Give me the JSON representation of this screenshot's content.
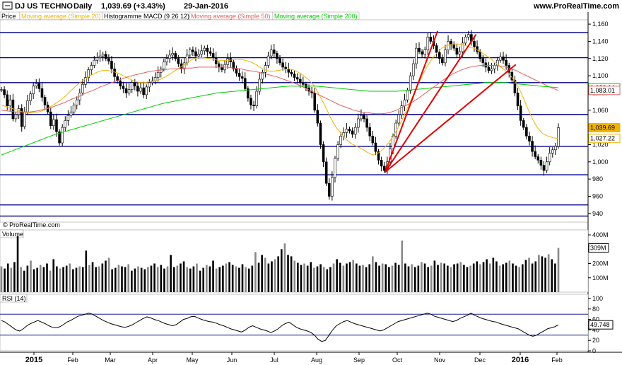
{
  "header": {
    "title": "DJ US TECHNO",
    "period": "Daily",
    "quote": "1,039.69 (+3.43%)",
    "date": "29-Jan-2016",
    "site": "www.ProRealTime.com"
  },
  "watermark": "© ProRealTime.com",
  "legend": [
    {
      "label": "Price",
      "color": "#000000"
    },
    {
      "label": "Moving average (Simple 20)",
      "color": "#f0b400"
    },
    {
      "label": "Histogramme MACD (9 26 12)",
      "color": "#000000"
    },
    {
      "label": "Moving average (Simple 50)",
      "color": "#e06060"
    },
    {
      "label": "Moving average (Simple 200)",
      "color": "#00cc00"
    }
  ],
  "x_labels": [
    {
      "label": "2015",
      "bold": true
    },
    {
      "label": "Feb",
      "bold": false
    },
    {
      "label": "Mar",
      "bold": false
    },
    {
      "label": "Apr",
      "bold": false
    },
    {
      "label": "May",
      "bold": false
    },
    {
      "label": "Jun",
      "bold": false
    },
    {
      "label": "Jul",
      "bold": false
    },
    {
      "label": "Aug",
      "bold": false
    },
    {
      "label": "Sep",
      "bold": false
    },
    {
      "label": "Oct",
      "bold": false
    },
    {
      "label": "Nov",
      "bold": false
    },
    {
      "label": "Dec",
      "bold": false
    },
    {
      "label": "2016",
      "bold": true
    },
    {
      "label": "Feb",
      "bold": false
    }
  ],
  "chart_data": [
    {
      "type": "line",
      "panel": "price",
      "yticks": [
        "1,160",
        "1,140",
        "1,120",
        "1,100",
        "1,080",
        "1,060",
        "1,040",
        "1,020",
        "1,000",
        "980",
        "960",
        "940"
      ],
      "ylim": [
        930,
        1165
      ],
      "support_resistance_levels": [
        1150,
        1121,
        1092,
        1055,
        1018,
        985,
        950,
        937
      ],
      "trendlines": [
        {
          "from": [
            "2015-09-29",
            988
          ],
          "to": [
            "2015-11-05",
            1152
          ]
        },
        {
          "from": [
            "2015-09-29",
            988
          ],
          "to": [
            "2015-12-02",
            1148
          ]
        },
        {
          "from": [
            "2015-09-29",
            988
          ],
          "to": [
            "2015-12-30",
            1113
          ]
        }
      ],
      "last_values": [
        {
          "label": "1,086.14",
          "series": "Moving average (Simple 200)",
          "value": 1086.14,
          "color": "#00cc00"
        },
        {
          "label": "1,083.01",
          "series": "Moving average (Simple 50)",
          "value": 1083.01,
          "color": "#e06060"
        },
        {
          "label": "1,039.69",
          "series": "Price",
          "value": 1039.69,
          "color": "#f0b400"
        },
        {
          "label": "1,027.22",
          "series": "Moving average (Simple 20)",
          "value": 1027.22,
          "color": "#f0b400"
        }
      ],
      "series": [
        {
          "name": "Price",
          "values": [
            1084,
            1078,
            1065,
            1072,
            1050,
            1055,
            1062,
            1041,
            1058,
            1071,
            1079,
            1088,
            1091,
            1085,
            1075,
            1066,
            1058,
            1042,
            1049,
            1035,
            1022,
            1040,
            1048,
            1054,
            1058,
            1066,
            1072,
            1080,
            1090,
            1098,
            1107,
            1112,
            1118,
            1121,
            1123,
            1125,
            1120,
            1117,
            1108,
            1099,
            1094,
            1088,
            1085,
            1080,
            1084,
            1092,
            1088,
            1082,
            1086,
            1078,
            1087,
            1092,
            1094,
            1098,
            1104,
            1108,
            1116,
            1120,
            1124,
            1126,
            1120,
            1114,
            1108,
            1115,
            1124,
            1130,
            1128,
            1123,
            1125,
            1129,
            1132,
            1128,
            1126,
            1121,
            1114,
            1110,
            1107,
            1113,
            1120,
            1116,
            1108,
            1103,
            1099,
            1097,
            1085,
            1074,
            1066,
            1065,
            1082,
            1096,
            1104,
            1112,
            1123,
            1130,
            1126,
            1120,
            1115,
            1110,
            1108,
            1104,
            1102,
            1098,
            1096,
            1092,
            1090,
            1086,
            1082,
            1080,
            1060,
            1045,
            1020,
            1000,
            975,
            960,
            982,
            1004,
            1020,
            1030,
            1034,
            1038,
            1036,
            1032,
            1040,
            1050,
            1054,
            1050,
            1040,
            1030,
            1022,
            1012,
            1002,
            995,
            990,
            1000,
            1015,
            1030,
            1045,
            1055,
            1065,
            1072,
            1083,
            1100,
            1114,
            1132,
            1128,
            1125,
            1130,
            1145,
            1140,
            1135,
            1127,
            1120,
            1115,
            1130,
            1140,
            1136,
            1132,
            1125,
            1128,
            1138,
            1145,
            1148,
            1140,
            1134,
            1128,
            1120,
            1115,
            1110,
            1106,
            1108,
            1112,
            1118,
            1122,
            1118,
            1112,
            1104,
            1095,
            1080,
            1065,
            1048,
            1040,
            1030,
            1024,
            1012,
            1006,
            1002,
            996,
            990,
            1000,
            1010,
            1014,
            1018,
            1039.69
          ]
        },
        {
          "name": "Moving average (Simple 20)",
          "values": [
            1066,
            1064,
            1062,
            1060,
            1058,
            1057,
            1057,
            1058,
            1060,
            1063,
            1067,
            1071,
            1076,
            1082,
            1088,
            1093,
            1097,
            1101,
            1104,
            1106,
            1106,
            1105,
            1103,
            1100,
            1097,
            1094,
            1092,
            1092,
            1093,
            1094,
            1096,
            1099,
            1103,
            1107,
            1111,
            1115,
            1119,
            1121,
            1121,
            1120,
            1119,
            1118,
            1118,
            1118,
            1119,
            1119,
            1118,
            1116,
            1113,
            1109,
            1106,
            1105,
            1106,
            1107,
            1108,
            1107,
            1104,
            1100,
            1095,
            1088,
            1077,
            1065,
            1052,
            1041,
            1033,
            1026,
            1021,
            1018,
            1015,
            1011,
            1008,
            1010,
            1015,
            1022,
            1031,
            1042,
            1055,
            1069,
            1083,
            1096,
            1108,
            1118,
            1126,
            1132,
            1135,
            1137,
            1137,
            1136,
            1134,
            1132,
            1129,
            1125,
            1121,
            1116,
            1111,
            1106,
            1100,
            1092,
            1080,
            1065,
            1051,
            1040,
            1033,
            1030,
            1028,
            1027.22
          ]
        },
        {
          "name": "Moving average (Simple 50)",
          "values": [
            1060,
            1059,
            1058,
            1058,
            1058,
            1059,
            1061,
            1063,
            1066,
            1069,
            1073,
            1076,
            1080,
            1083,
            1087,
            1090,
            1093,
            1096,
            1099,
            1101,
            1103,
            1105,
            1106,
            1107,
            1108,
            1108,
            1109,
            1109,
            1110,
            1110,
            1110,
            1110,
            1110,
            1109,
            1108,
            1106,
            1105,
            1103,
            1101,
            1099,
            1096,
            1093,
            1090,
            1086,
            1082,
            1078,
            1074,
            1070,
            1066,
            1063,
            1060,
            1058,
            1057,
            1056,
            1056,
            1057,
            1060,
            1064,
            1068,
            1073,
            1079,
            1085,
            1091,
            1097,
            1102,
            1106,
            1109,
            1111,
            1112,
            1112,
            1112,
            1111,
            1109,
            1106,
            1102,
            1098,
            1094,
            1090,
            1086,
            1083.01
          ]
        },
        {
          "name": "Moving average (Simple 200)",
          "values": [
            1008,
            1012,
            1016,
            1020,
            1024,
            1028,
            1032,
            1035,
            1038,
            1041,
            1044,
            1047,
            1050,
            1053,
            1056,
            1059,
            1062,
            1065,
            1068,
            1070,
            1072,
            1074,
            1076,
            1078,
            1080,
            1081,
            1082,
            1083,
            1084,
            1085,
            1086,
            1087,
            1088,
            1088,
            1088,
            1088,
            1087,
            1086,
            1085,
            1084,
            1083,
            1082,
            1082,
            1082,
            1082,
            1083,
            1084,
            1085,
            1086,
            1087,
            1088,
            1089,
            1090,
            1091,
            1092,
            1092,
            1092,
            1091,
            1090,
            1089,
            1088,
            1087,
            1086.14
          ]
        }
      ]
    },
    {
      "type": "bar",
      "panel": "volume",
      "title": "Volume",
      "yticks": [
        "400M",
        "300M",
        "200M",
        "100M"
      ],
      "ylim": [
        0,
        420
      ],
      "last_value": {
        "label": "309M",
        "value": 309
      },
      "values": [
        180,
        165,
        200,
        170,
        210,
        390,
        175,
        150,
        185,
        220,
        160,
        170,
        190,
        175,
        200,
        150,
        230,
        180,
        165,
        175,
        185,
        200,
        160,
        170,
        180,
        175,
        290,
        190,
        210,
        175,
        180,
        200,
        220,
        240,
        160,
        170,
        190,
        180,
        175,
        195,
        150,
        165,
        180,
        170,
        160,
        175,
        185,
        200,
        175,
        190,
        165,
        180,
        260,
        175,
        185,
        200,
        215,
        175,
        165,
        180,
        200,
        150,
        170,
        190,
        180,
        220,
        165,
        175,
        185,
        200,
        210,
        190,
        180,
        170,
        195,
        175,
        165,
        185,
        280,
        205,
        260,
        240,
        200,
        215,
        230,
        250,
        300,
        340,
        260,
        250,
        220,
        205,
        190,
        200,
        185,
        210,
        170,
        180,
        195,
        175,
        160,
        175,
        200,
        230,
        205,
        185,
        200,
        210,
        225,
        200,
        185,
        190,
        175,
        195,
        250,
        210,
        185,
        200,
        195,
        175,
        185,
        205,
        190,
        360,
        200,
        180,
        195,
        175,
        185,
        210,
        200,
        175,
        185,
        220,
        190,
        205,
        200,
        185,
        175,
        195,
        200,
        210,
        190,
        175,
        185,
        200,
        215,
        195,
        210,
        230,
        200,
        240,
        215,
        185,
        195,
        205,
        220,
        200,
        185,
        175,
        195,
        225,
        240,
        200,
        215,
        260,
        250,
        240,
        265,
        230,
        200,
        309
      ]
    },
    {
      "type": "line",
      "panel": "rsi",
      "title": "RSI (14)",
      "yticks": [
        "100",
        "80",
        "60",
        "40",
        "20",
        "0"
      ],
      "ylim": [
        0,
        100
      ],
      "levels": [
        70,
        30
      ],
      "last_value": {
        "label": "49.748",
        "value": 49.748
      },
      "values": [
        58,
        55,
        50,
        45,
        40,
        38,
        42,
        48,
        52,
        55,
        58,
        55,
        52,
        48,
        45,
        44,
        46,
        50,
        55,
        58,
        62,
        66,
        68,
        70,
        72,
        70,
        66,
        62,
        58,
        55,
        52,
        50,
        48,
        46,
        45,
        47,
        50,
        54,
        58,
        62,
        65,
        63,
        60,
        58,
        55,
        52,
        50,
        48,
        50,
        55,
        60,
        62,
        65,
        66,
        63,
        60,
        58,
        56,
        55,
        53,
        50,
        48,
        45,
        42,
        40,
        38,
        36,
        40,
        45,
        48,
        45,
        42,
        40,
        38,
        35,
        38,
        42,
        48,
        52,
        55,
        50,
        45,
        42,
        40,
        38,
        35,
        30,
        22,
        18,
        20,
        30,
        40,
        48,
        52,
        56,
        58,
        55,
        52,
        50,
        48,
        46,
        44,
        42,
        40,
        38,
        40,
        44,
        48,
        52,
        56,
        58,
        60,
        62,
        64,
        66,
        68,
        70,
        72,
        70,
        66,
        64,
        62,
        60,
        58,
        56,
        58,
        62,
        65,
        68,
        72,
        68,
        65,
        62,
        60,
        58,
        56,
        55,
        52,
        50,
        48,
        46,
        44,
        42,
        38,
        34,
        30,
        28,
        30,
        34,
        38,
        42,
        44,
        46,
        49.748
      ]
    }
  ]
}
